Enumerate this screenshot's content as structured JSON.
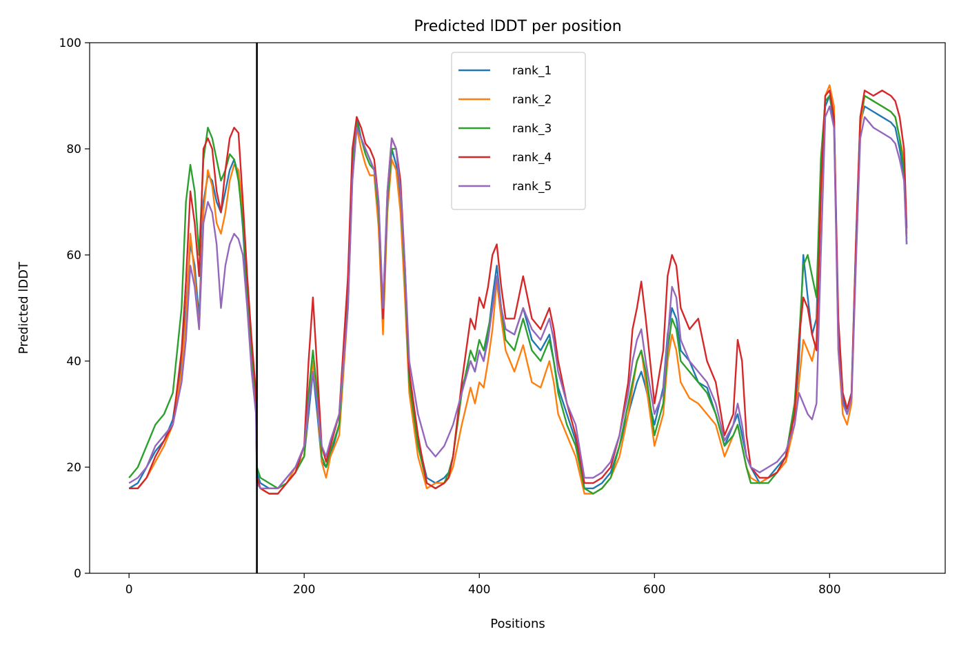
{
  "chart_data": {
    "type": "line",
    "title": "Predicted lDDT per position",
    "xlabel": "Positions",
    "ylabel": "Predicted lDDT",
    "xlim": [
      -45,
      932
    ],
    "ylim": [
      0,
      100
    ],
    "xticks": [
      0,
      200,
      400,
      600,
      800
    ],
    "yticks": [
      0,
      20,
      40,
      60,
      80,
      100
    ],
    "vline": {
      "x": 146,
      "color": "#000000"
    },
    "grid": false,
    "legend": {
      "placement": "top-center"
    },
    "x": [
      0,
      10,
      20,
      30,
      40,
      50,
      60,
      65,
      70,
      75,
      80,
      85,
      90,
      95,
      100,
      105,
      110,
      115,
      120,
      125,
      130,
      135,
      140,
      145,
      146,
      150,
      160,
      170,
      180,
      190,
      200,
      205,
      210,
      215,
      220,
      225,
      230,
      240,
      250,
      255,
      260,
      265,
      270,
      275,
      280,
      285,
      290,
      295,
      300,
      305,
      310,
      315,
      320,
      330,
      340,
      350,
      360,
      365,
      370,
      380,
      390,
      395,
      400,
      405,
      410,
      415,
      420,
      425,
      430,
      440,
      450,
      460,
      470,
      480,
      485,
      490,
      500,
      510,
      520,
      530,
      540,
      550,
      560,
      570,
      575,
      580,
      585,
      590,
      600,
      610,
      615,
      620,
      625,
      630,
      640,
      650,
      660,
      670,
      680,
      690,
      695,
      700,
      705,
      710,
      720,
      730,
      740,
      750,
      760,
      765,
      770,
      775,
      780,
      785,
      790,
      795,
      800,
      805,
      810,
      815,
      820,
      825,
      830,
      835,
      840,
      850,
      860,
      870,
      875,
      880,
      885,
      888
    ],
    "series": [
      {
        "name": "rank_1",
        "color": "#1f77b4",
        "values": [
          16,
          17,
          20,
          23,
          25,
          29,
          40,
          50,
          62,
          58,
          48,
          70,
          75,
          74,
          70,
          68,
          72,
          76,
          78,
          75,
          65,
          52,
          40,
          32,
          19,
          17,
          16,
          16,
          18,
          20,
          22,
          30,
          38,
          30,
          21,
          20,
          22,
          28,
          55,
          78,
          86,
          82,
          80,
          78,
          76,
          68,
          50,
          70,
          80,
          77,
          70,
          55,
          38,
          25,
          18,
          17,
          18,
          19,
          22,
          35,
          40,
          38,
          42,
          40,
          45,
          52,
          58,
          50,
          46,
          45,
          50,
          44,
          42,
          45,
          40,
          35,
          30,
          25,
          16,
          16,
          17,
          19,
          24,
          30,
          33,
          36,
          38,
          35,
          28,
          35,
          45,
          50,
          48,
          42,
          40,
          36,
          35,
          30,
          24,
          28,
          30,
          26,
          22,
          20,
          17,
          18,
          20,
          22,
          30,
          40,
          60,
          52,
          45,
          48,
          75,
          88,
          90,
          85,
          45,
          33,
          30,
          33,
          60,
          85,
          88,
          87,
          86,
          85,
          84,
          80,
          75,
          62
        ]
      },
      {
        "name": "rank_2",
        "color": "#ff7f0e",
        "values": [
          16,
          16,
          18,
          21,
          24,
          28,
          38,
          48,
          64,
          56,
          46,
          68,
          76,
          73,
          66,
          64,
          68,
          74,
          77,
          76,
          68,
          55,
          42,
          33,
          18,
          16,
          15,
          15,
          17,
          20,
          22,
          32,
          40,
          32,
          21,
          18,
          22,
          26,
          50,
          74,
          84,
          80,
          77,
          75,
          75,
          65,
          45,
          68,
          78,
          76,
          68,
          52,
          34,
          22,
          16,
          17,
          17,
          18,
          20,
          28,
          35,
          32,
          36,
          35,
          40,
          46,
          55,
          48,
          42,
          38,
          43,
          36,
          35,
          40,
          36,
          30,
          26,
          22,
          15,
          15,
          16,
          18,
          22,
          30,
          35,
          40,
          42,
          36,
          24,
          30,
          40,
          45,
          42,
          36,
          33,
          32,
          30,
          28,
          22,
          26,
          28,
          24,
          20,
          18,
          17,
          18,
          19,
          21,
          28,
          36,
          44,
          42,
          40,
          44,
          70,
          90,
          92,
          88,
          42,
          30,
          28,
          32,
          58,
          84,
          90,
          89,
          88,
          87,
          86,
          82,
          78,
          64
        ]
      },
      {
        "name": "rank_3",
        "color": "#2ca02c",
        "values": [
          18,
          20,
          24,
          28,
          30,
          34,
          50,
          70,
          77,
          72,
          60,
          78,
          84,
          82,
          78,
          74,
          76,
          79,
          78,
          74,
          66,
          54,
          42,
          33,
          20,
          18,
          17,
          16,
          17,
          19,
          22,
          34,
          42,
          34,
          22,
          20,
          23,
          28,
          52,
          76,
          85,
          82,
          79,
          77,
          76,
          68,
          48,
          70,
          80,
          80,
          72,
          56,
          36,
          24,
          17,
          16,
          17,
          19,
          22,
          34,
          42,
          40,
          44,
          42,
          46,
          50,
          56,
          50,
          44,
          42,
          48,
          42,
          40,
          44,
          40,
          34,
          28,
          24,
          16,
          15,
          16,
          18,
          24,
          32,
          36,
          40,
          42,
          38,
          26,
          32,
          42,
          48,
          46,
          40,
          38,
          36,
          34,
          30,
          24,
          26,
          28,
          24,
          20,
          17,
          17,
          17,
          19,
          22,
          32,
          44,
          58,
          60,
          56,
          52,
          78,
          89,
          90,
          86,
          46,
          34,
          31,
          34,
          62,
          86,
          90,
          89,
          88,
          87,
          86,
          82,
          76,
          63
        ]
      },
      {
        "name": "rank_4",
        "color": "#d62728",
        "values": [
          16,
          16,
          18,
          22,
          25,
          28,
          42,
          55,
          72,
          66,
          56,
          80,
          82,
          80,
          72,
          68,
          76,
          82,
          84,
          83,
          70,
          56,
          44,
          34,
          18,
          16,
          15,
          15,
          17,
          19,
          24,
          40,
          52,
          38,
          24,
          21,
          24,
          30,
          56,
          80,
          86,
          84,
          81,
          80,
          78,
          70,
          48,
          72,
          82,
          80,
          74,
          58,
          38,
          26,
          17,
          16,
          17,
          18,
          22,
          36,
          48,
          46,
          52,
          50,
          54,
          60,
          62,
          54,
          48,
          48,
          56,
          48,
          46,
          50,
          46,
          40,
          32,
          26,
          17,
          17,
          18,
          20,
          26,
          36,
          46,
          50,
          55,
          48,
          32,
          42,
          56,
          60,
          58,
          50,
          46,
          48,
          40,
          36,
          26,
          30,
          44,
          40,
          26,
          20,
          18,
          18,
          19,
          22,
          30,
          44,
          52,
          50,
          45,
          42,
          72,
          90,
          91,
          86,
          48,
          34,
          31,
          34,
          62,
          86,
          91,
          90,
          91,
          90,
          89,
          86,
          80,
          65
        ]
      },
      {
        "name": "rank_5",
        "color": "#9467bd",
        "values": [
          17,
          18,
          20,
          24,
          26,
          28,
          36,
          44,
          58,
          54,
          46,
          66,
          70,
          68,
          62,
          50,
          58,
          62,
          64,
          63,
          60,
          50,
          38,
          30,
          17,
          16,
          16,
          16,
          18,
          20,
          24,
          32,
          38,
          32,
          24,
          22,
          25,
          30,
          50,
          74,
          84,
          82,
          80,
          78,
          76,
          70,
          50,
          72,
          82,
          80,
          72,
          58,
          40,
          30,
          24,
          22,
          24,
          26,
          28,
          34,
          40,
          38,
          42,
          40,
          44,
          50,
          56,
          50,
          46,
          45,
          50,
          46,
          44,
          48,
          44,
          38,
          32,
          28,
          18,
          18,
          19,
          21,
          26,
          34,
          40,
          44,
          46,
          40,
          30,
          34,
          44,
          54,
          52,
          44,
          40,
          38,
          36,
          32,
          25,
          28,
          32,
          28,
          22,
          20,
          19,
          20,
          21,
          23,
          28,
          34,
          32,
          30,
          29,
          32,
          60,
          86,
          88,
          84,
          42,
          32,
          30,
          33,
          58,
          82,
          86,
          84,
          83,
          82,
          81,
          78,
          74,
          62
        ]
      }
    ]
  }
}
